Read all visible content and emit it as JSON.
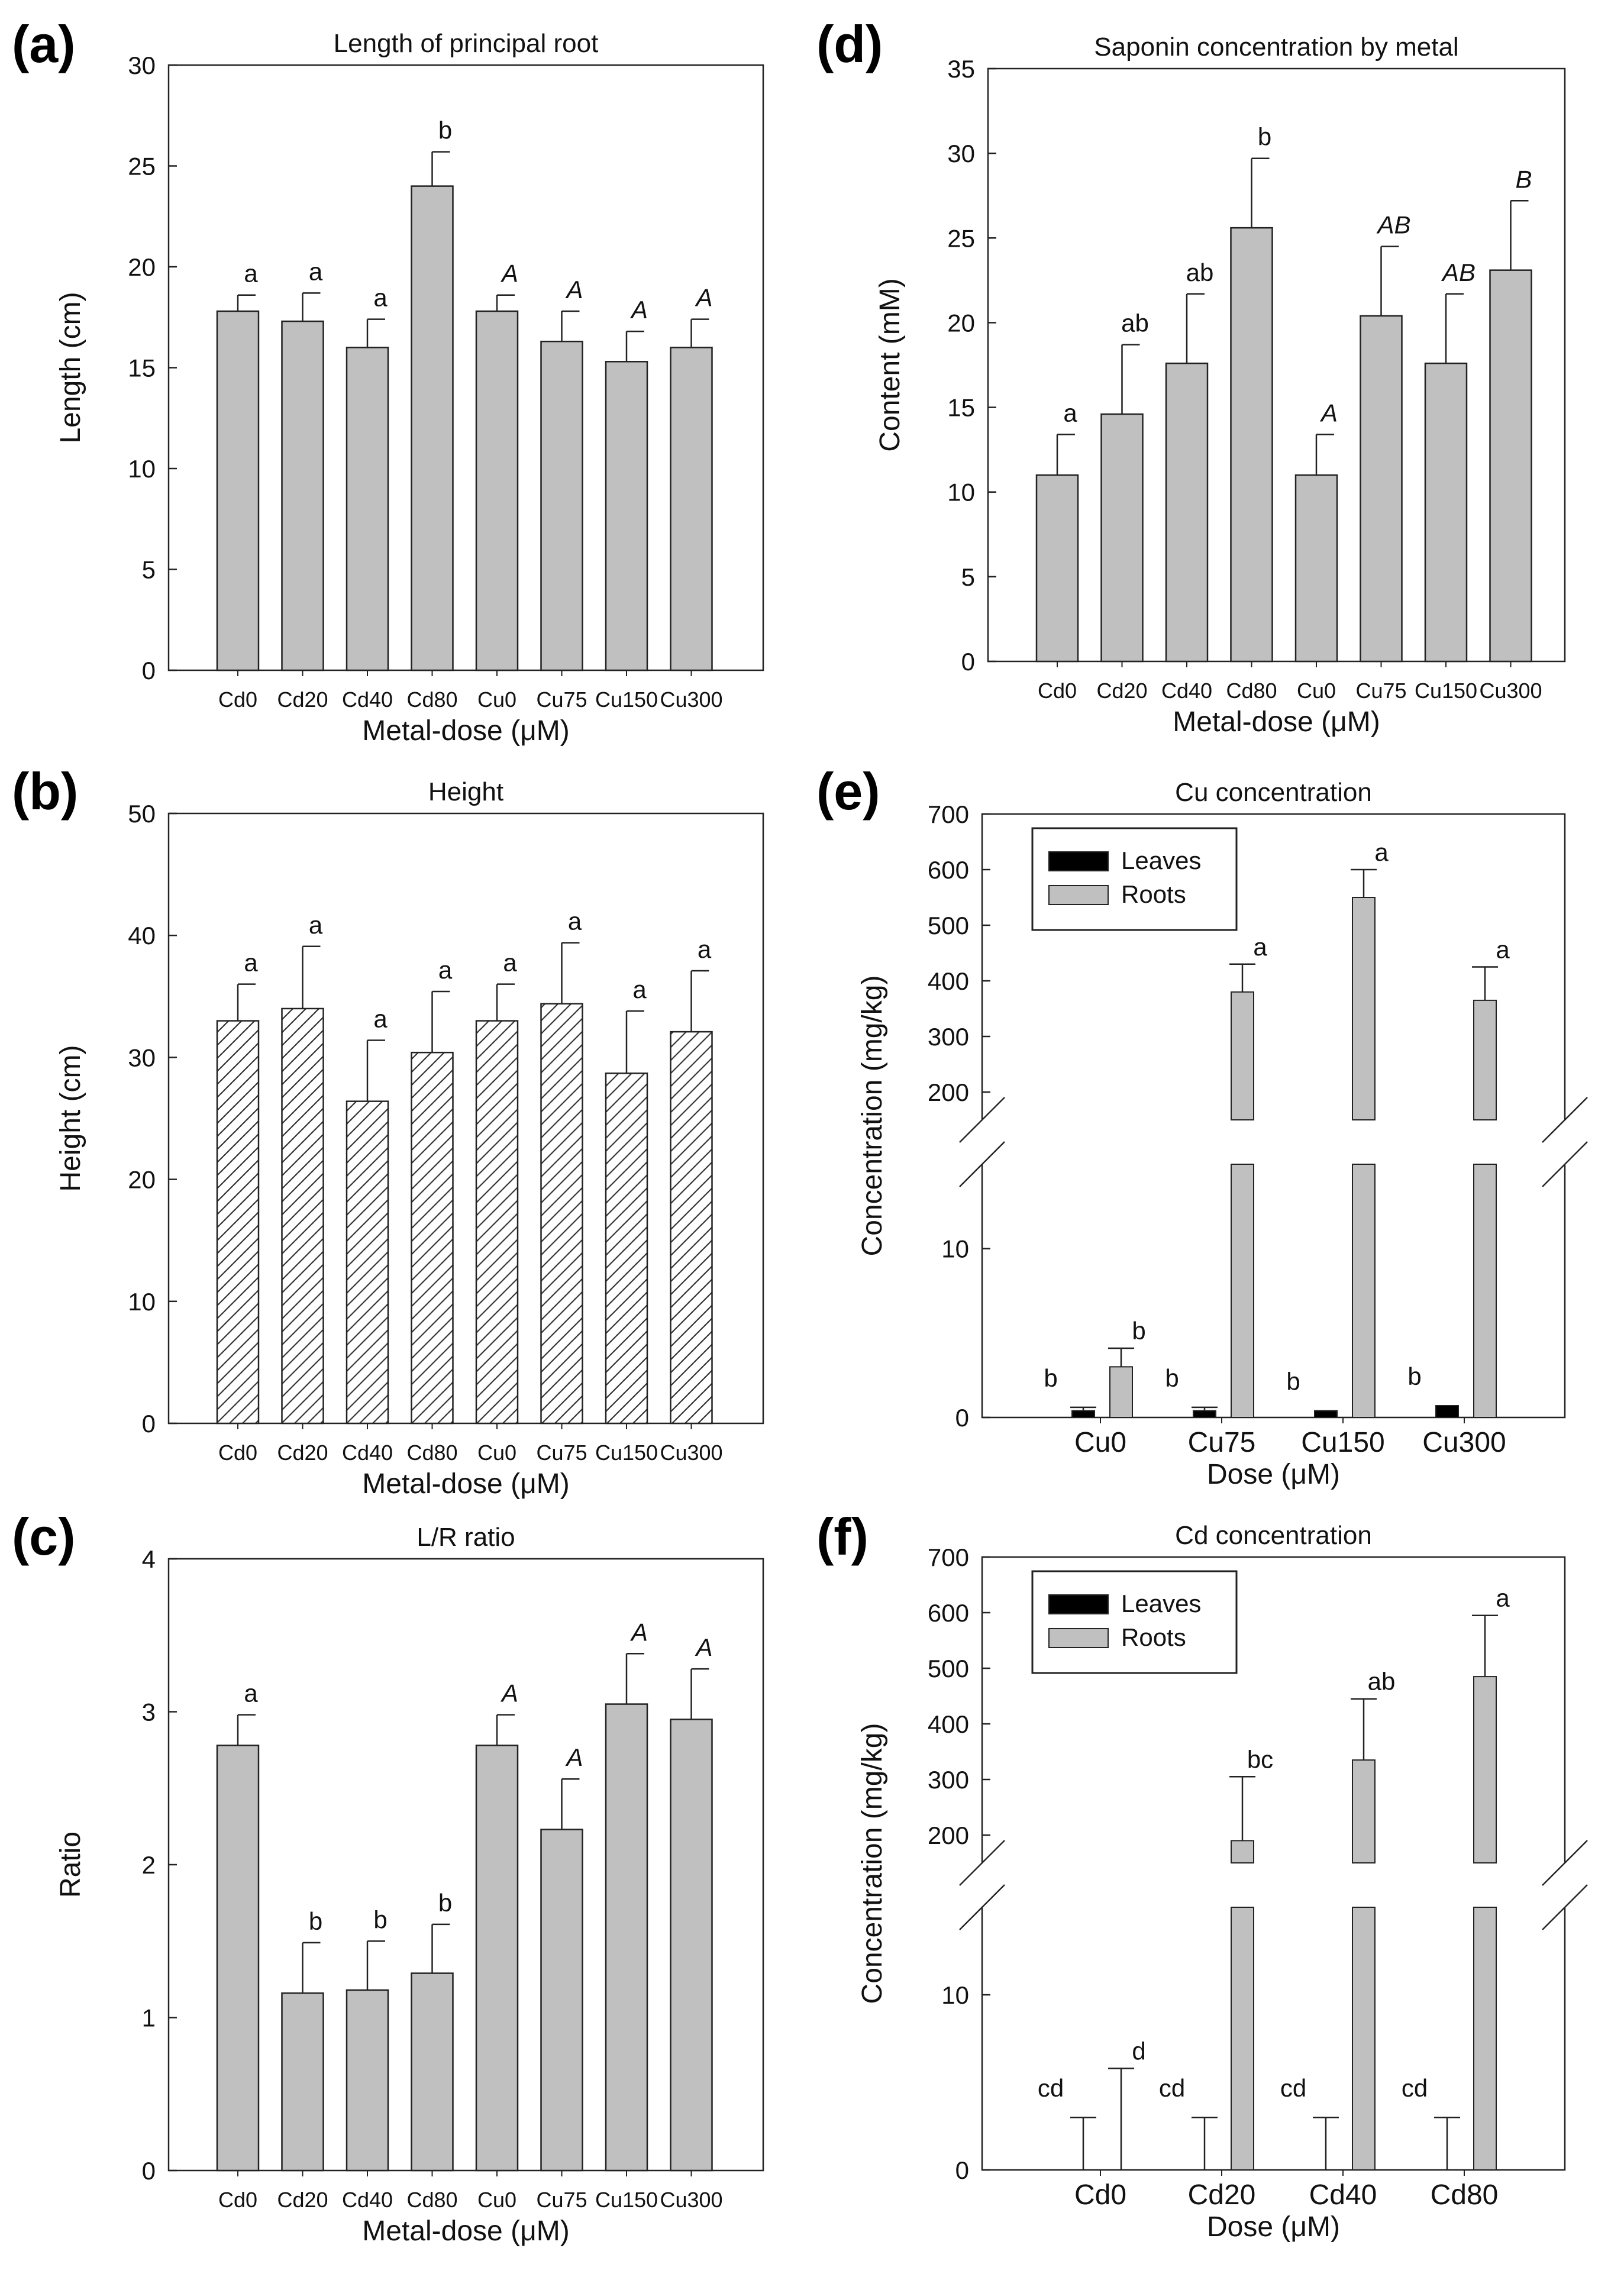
{
  "chart_data": [
    {
      "panel": "(a)",
      "type": "bar",
      "title": "Length of principal root",
      "xlabel": "Metal-dose (μM)",
      "ylabel": "Length (cm)",
      "ylim": [
        0,
        30
      ],
      "yticks": [
        "0",
        "5",
        "10",
        "15",
        "20",
        "25",
        "30"
      ],
      "categories": [
        "Cd0",
        "Cd20",
        "Cd40",
        "Cd80",
        "Cu0",
        "Cu75",
        "Cu150",
        "Cu300"
      ],
      "values": [
        17.8,
        17.3,
        16.0,
        24.0,
        17.8,
        16.3,
        15.3,
        16.0
      ],
      "errors": [
        0.8,
        1.4,
        1.4,
        1.7,
        0.8,
        1.5,
        1.5,
        1.4
      ],
      "letters": [
        "a",
        "a",
        "a",
        "b",
        "A",
        "A",
        "A",
        "A"
      ],
      "italic": [
        false,
        false,
        false,
        false,
        true,
        true,
        true,
        true
      ],
      "fill": "#c0c0c0",
      "pattern": "solid"
    },
    {
      "panel": "(b)",
      "type": "bar",
      "title": "Height",
      "xlabel": "Metal-dose (μM)",
      "ylabel": "Height (cm)",
      "ylim": [
        0,
        50
      ],
      "yticks": [
        "0",
        "10",
        "20",
        "30",
        "40",
        "50"
      ],
      "categories": [
        "Cd0",
        "Cd20",
        "Cd40",
        "Cd80",
        "Cu0",
        "Cu75",
        "Cu150",
        "Cu300"
      ],
      "values": [
        33.0,
        34.0,
        26.4,
        30.4,
        33.0,
        34.4,
        28.7,
        32.1
      ],
      "errors": [
        3.0,
        5.1,
        5.0,
        5.0,
        3.0,
        5.0,
        5.1,
        5.0
      ],
      "letters": [
        "a",
        "a",
        "a",
        "a",
        "a",
        "a",
        "a",
        "a"
      ],
      "italic": [
        false,
        false,
        false,
        false,
        false,
        false,
        false,
        false
      ],
      "fill": "#ffffff",
      "pattern": "hatch"
    },
    {
      "panel": "(c)",
      "type": "bar",
      "title": "L/R ratio",
      "xlabel": "Metal-dose (μM)",
      "ylabel": "Ratio",
      "ylim": [
        0,
        4
      ],
      "yticks": [
        "0",
        "1",
        "2",
        "3",
        "4"
      ],
      "categories": [
        "Cd0",
        "Cd20",
        "Cd40",
        "Cd80",
        "Cu0",
        "Cu75",
        "Cu150",
        "Cu300"
      ],
      "values": [
        2.78,
        1.16,
        1.18,
        1.29,
        2.78,
        2.23,
        3.05,
        2.95
      ],
      "errors": [
        0.2,
        0.33,
        0.32,
        0.32,
        0.2,
        0.33,
        0.33,
        0.33
      ],
      "letters": [
        "a",
        "b",
        "b",
        "b",
        "A",
        "A",
        "A",
        "A"
      ],
      "italic": [
        false,
        false,
        false,
        false,
        true,
        true,
        true,
        true
      ],
      "fill": "#c0c0c0",
      "pattern": "solid"
    },
    {
      "panel": "(d)",
      "type": "bar",
      "title": "Saponin concentration by metal",
      "xlabel": "Metal-dose (μM)",
      "ylabel": "Content (mM)",
      "ylim": [
        0,
        35
      ],
      "yticks": [
        "0",
        "5",
        "10",
        "15",
        "20",
        "25",
        "30",
        "35"
      ],
      "categories": [
        "Cd0",
        "Cd20",
        "Cd40",
        "Cd80",
        "Cu0",
        "Cu75",
        "Cu150",
        "Cu300"
      ],
      "values": [
        11.0,
        14.6,
        17.6,
        25.6,
        11.0,
        20.4,
        17.6,
        23.1
      ],
      "errors": [
        2.4,
        4.1,
        4.1,
        4.1,
        2.4,
        4.1,
        4.1,
        4.1
      ],
      "letters": [
        "a",
        "ab",
        "ab",
        "b",
        "A",
        "AB",
        "AB",
        "B"
      ],
      "italic": [
        false,
        false,
        false,
        false,
        true,
        true,
        true,
        true
      ],
      "fill": "#c0c0c0",
      "pattern": "solid"
    },
    {
      "panel": "(e)",
      "type": "bar",
      "title": "Cu concentration",
      "xlabel": "Dose (μM)",
      "ylabel": "Concentration (mg/kg)",
      "axis_break": true,
      "lower_ylim": [
        0,
        15
      ],
      "upper_ylim": [
        150,
        700
      ],
      "lower_yticks": [
        "0",
        "10"
      ],
      "upper_yticks": [
        "200",
        "300",
        "400",
        "500",
        "600",
        "700"
      ],
      "categories": [
        "Cu0",
        "Cu75",
        "Cu150",
        "Cu300"
      ],
      "legend": [
        "Leaves",
        "Roots"
      ],
      "legend_position": "top-left",
      "series": [
        {
          "name": "Leaves",
          "values": [
            0.4,
            0.4,
            0.4,
            0.7
          ],
          "errors": [
            0.2,
            0.2,
            0,
            0
          ],
          "letters": [
            "b",
            "b",
            "b",
            "b"
          ],
          "color": "#000000"
        },
        {
          "name": "Roots",
          "values": [
            3.0,
            380,
            550,
            365
          ],
          "errors": [
            1.1,
            50,
            50,
            60
          ],
          "letters": [
            "b",
            "a",
            "a",
            "a"
          ],
          "color": "#c0c0c0"
        }
      ]
    },
    {
      "panel": "(f)",
      "type": "bar",
      "title": "Cd concentration",
      "xlabel": "Dose (μM)",
      "ylabel": "Concentration (mg/kg)",
      "axis_break": true,
      "lower_ylim": [
        0,
        15
      ],
      "upper_ylim": [
        150,
        700
      ],
      "lower_yticks": [
        "0",
        "10"
      ],
      "upper_yticks": [
        "200",
        "300",
        "400",
        "500",
        "600",
        "700"
      ],
      "categories": [
        "Cd0",
        "Cd20",
        "Cd40",
        "Cd80"
      ],
      "legend": [
        "Leaves",
        "Roots"
      ],
      "legend_position": "top-left",
      "series": [
        {
          "name": "Leaves",
          "values": [
            0,
            0,
            0,
            0
          ],
          "errors": [
            3,
            3,
            3,
            3
          ],
          "letters": [
            "cd",
            "cd",
            "cd",
            "cd"
          ],
          "color": "#000000"
        },
        {
          "name": "Roots",
          "values": [
            0,
            190,
            335,
            485
          ],
          "errors": [
            5.8,
            115,
            110,
            110
          ],
          "letters": [
            "d",
            "bc",
            "ab",
            "a"
          ],
          "color": "#c0c0c0"
        }
      ]
    }
  ]
}
